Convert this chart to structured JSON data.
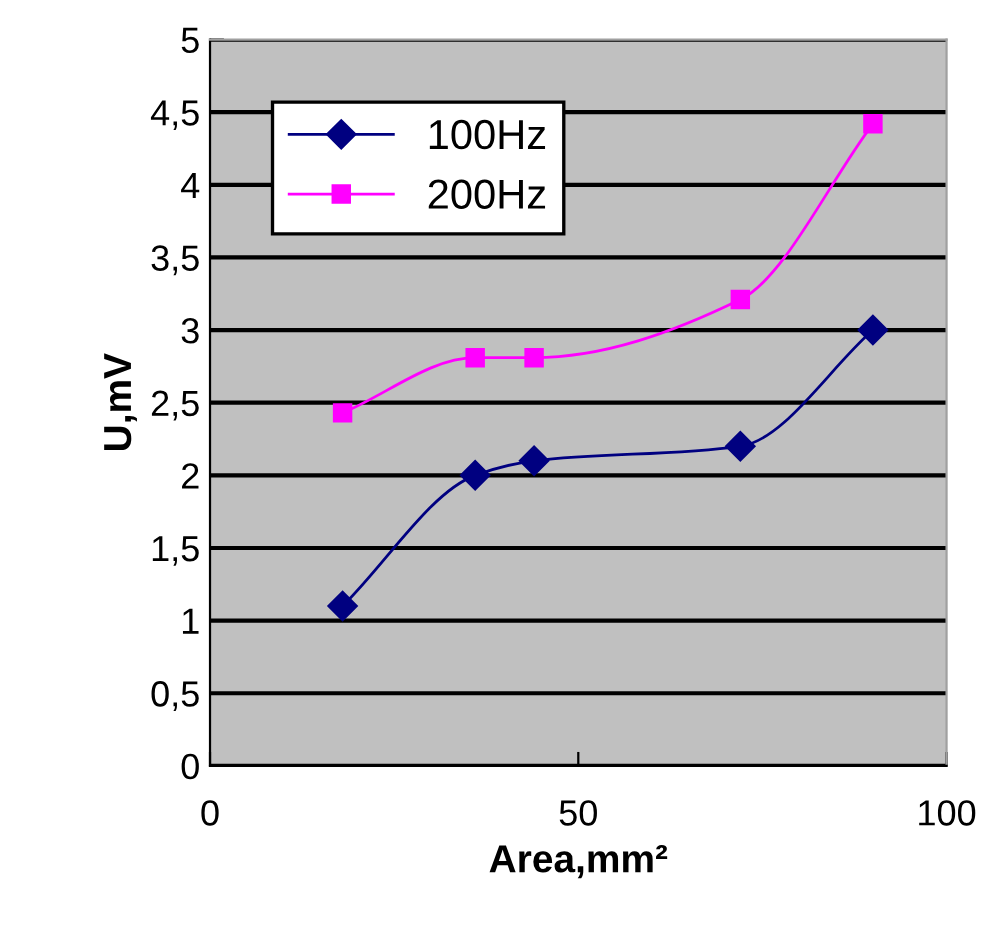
{
  "chart_data": {
    "type": "line",
    "xlabel": "Area,mm²",
    "ylabel": "U,mV",
    "series": [
      {
        "name": "100Hz",
        "color": "#000080",
        "marker": "diamond",
        "x": [
          18,
          36,
          44,
          72,
          90
        ],
        "values": [
          1.1,
          2.0,
          2.1,
          2.2,
          3.0
        ]
      },
      {
        "name": "200Hz",
        "color": "#ff00ff",
        "marker": "square",
        "x": [
          18,
          36,
          44,
          72,
          90
        ],
        "values": [
          2.43,
          2.81,
          2.81,
          3.21,
          4.42
        ]
      }
    ],
    "xlim": [
      0,
      100
    ],
    "xticks": [
      0,
      50,
      100
    ],
    "ylim": [
      0,
      5
    ],
    "yticks": [
      0,
      {
        "value": 0.5,
        "label": "0,5"
      },
      1,
      {
        "value": 1.5,
        "label": "1,5"
      },
      2,
      {
        "value": 2.5,
        "label": "2,5"
      },
      3,
      {
        "value": 3.5,
        "label": "3,5"
      },
      4,
      {
        "value": 4.5,
        "label": "4,5"
      },
      5
    ],
    "grid": "y",
    "legend": "top left",
    "line_style": "solid"
  }
}
